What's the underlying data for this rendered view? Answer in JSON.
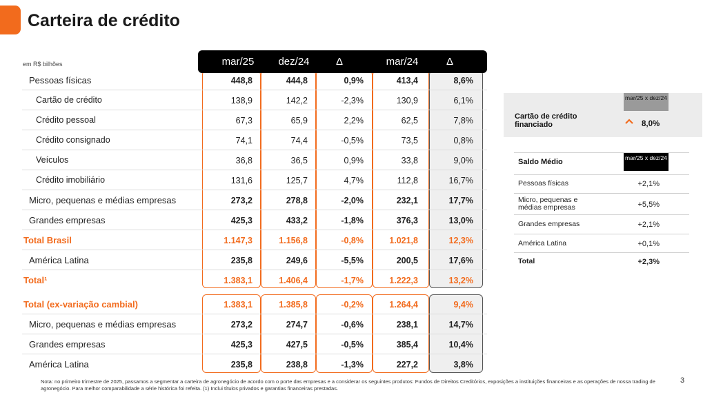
{
  "title": "Carteira de crédito",
  "unit": "em R$ bilhões",
  "colors": {
    "accent": "#f26b1d",
    "header_bg": "#000000",
    "gray_col": "#efefef"
  },
  "columns": [
    "mar/25",
    "dez/24",
    "Δ",
    "mar/24",
    "Δ"
  ],
  "rows": [
    {
      "label": "Pessoas físicas",
      "style": "main",
      "values": [
        "448,8",
        "444,8",
        "0,9%",
        "413,4",
        "8,6%"
      ]
    },
    {
      "label": "Cartão de crédito",
      "style": "sub",
      "values": [
        "138,9",
        "142,2",
        "-2,3%",
        "130,9",
        "6,1%"
      ]
    },
    {
      "label": "Crédito pessoal",
      "style": "sub",
      "values": [
        "67,3",
        "65,9",
        "2,2%",
        "62,5",
        "7,8%"
      ]
    },
    {
      "label": "Crédito consignado",
      "style": "sub",
      "values": [
        "74,1",
        "74,4",
        "-0,5%",
        "73,5",
        "0,8%"
      ]
    },
    {
      "label": "Veículos",
      "style": "sub",
      "values": [
        "36,8",
        "36,5",
        "0,9%",
        "33,8",
        "9,0%"
      ]
    },
    {
      "label": "Crédito imobiliário",
      "style": "sub",
      "values": [
        "131,6",
        "125,7",
        "4,7%",
        "112,8",
        "16,7%"
      ]
    },
    {
      "label": "Micro, pequenas e médias empresas",
      "style": "main",
      "values": [
        "273,2",
        "278,8",
        "-2,0%",
        "232,1",
        "17,7%"
      ]
    },
    {
      "label": "Grandes empresas",
      "style": "main",
      "values": [
        "425,3",
        "433,2",
        "-1,8%",
        "376,3",
        "13,0%"
      ]
    },
    {
      "label": "Total Brasil",
      "style": "orange",
      "values": [
        "1.147,3",
        "1.156,8",
        "-0,8%",
        "1.021,8",
        "12,3%"
      ]
    },
    {
      "label": "América Latina",
      "style": "main",
      "values": [
        "235,8",
        "249,6",
        "-5,5%",
        "200,5",
        "17,6%"
      ]
    },
    {
      "label": "Total¹",
      "style": "orange",
      "values": [
        "1.383,1",
        "1.406,4",
        "-1,7%",
        "1.222,3",
        "13,2%"
      ]
    },
    {
      "label": "Total (ex-variação cambial)",
      "style": "orange",
      "values": [
        "1.383,1",
        "1.385,8",
        "-0,2%",
        "1.264,4",
        "9,4%"
      ]
    },
    {
      "label": "Micro, pequenas e médias empresas",
      "style": "main",
      "values": [
        "273,2",
        "274,7",
        "-0,6%",
        "238,1",
        "14,7%"
      ]
    },
    {
      "label": "Grandes empresas",
      "style": "main",
      "values": [
        "425,3",
        "427,5",
        "-0,5%",
        "385,4",
        "10,4%"
      ]
    },
    {
      "label": "América Latina",
      "style": "main",
      "values": [
        "235,8",
        "238,8",
        "-1,3%",
        "227,2",
        "3,8%"
      ]
    }
  ],
  "card": {
    "header": "mar/25 x dez/24",
    "label": "Cartão de crédito financiado",
    "value": "8,0%"
  },
  "saldo_medio": {
    "title": "Saldo Médio",
    "header": "mar/25 x dez/24",
    "rows": [
      {
        "label": "Pessoas físicas",
        "value": "+2,1%"
      },
      {
        "label": "Micro, pequenas e médias empresas",
        "value": "+5,5%"
      },
      {
        "label": "Grandes empresas",
        "value": "+2,1%"
      },
      {
        "label": "América Latina",
        "value": "+0,1%"
      },
      {
        "label": "Total",
        "value": "+2,3%"
      }
    ]
  },
  "note": "Nota: no primeiro trimestre de 2025, passamos a segmentar a carteira de agronegócio de acordo com o porte das empresas e a considerar os seguintes produtos: Fundos de Direitos Creditórios, exposições a instituições financeiras e as operações de nossa trading de agronegócio. Para melhor comparabilidade a série histórica foi refeita. (1) Inclui títulos privados e garantias financeiras prestadas.",
  "page_number": "3"
}
